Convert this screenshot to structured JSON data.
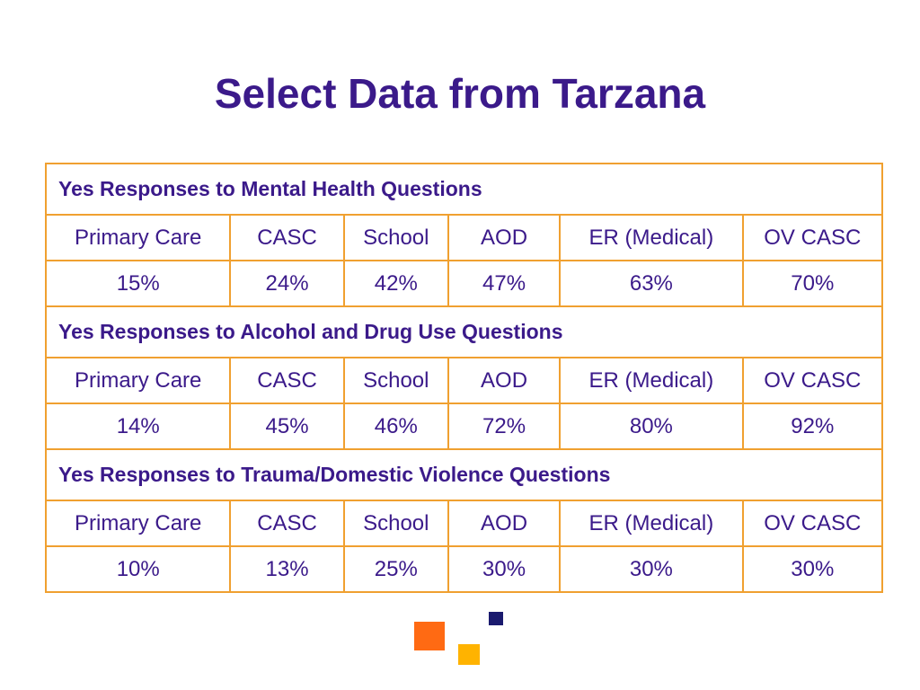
{
  "title": "Select Data from Tarzana",
  "sections": [
    {
      "heading": "Yes Responses to Mental Health Questions",
      "headers": [
        "Primary Care",
        "CASC",
        "School",
        "AOD",
        "ER (Medical)",
        "OV CASC"
      ],
      "values": [
        "15%",
        "24%",
        "42%",
        "47%",
        "63%",
        "70%"
      ]
    },
    {
      "heading": "Yes Responses to Alcohol and Drug Use Questions",
      "headers": [
        "Primary Care",
        "CASC",
        "School",
        "AOD",
        "ER (Medical)",
        "OV CASC"
      ],
      "values": [
        "14%",
        "45%",
        "46%",
        "72%",
        "80%",
        "92%"
      ]
    },
    {
      "heading": "Yes Responses to Trauma/Domestic Violence Questions",
      "headers": [
        "Primary Care",
        "CASC",
        "School",
        "AOD",
        "ER (Medical)",
        "OV CASC"
      ],
      "values": [
        "10%",
        "13%",
        "25%",
        "30%",
        "30%",
        "30%"
      ]
    }
  ],
  "colors": {
    "title": "#3b1a8a",
    "border": "#f0a030",
    "deco_orange": "#ff6a13",
    "deco_yellow": "#ffb300",
    "deco_navy": "#1a1a6e"
  }
}
